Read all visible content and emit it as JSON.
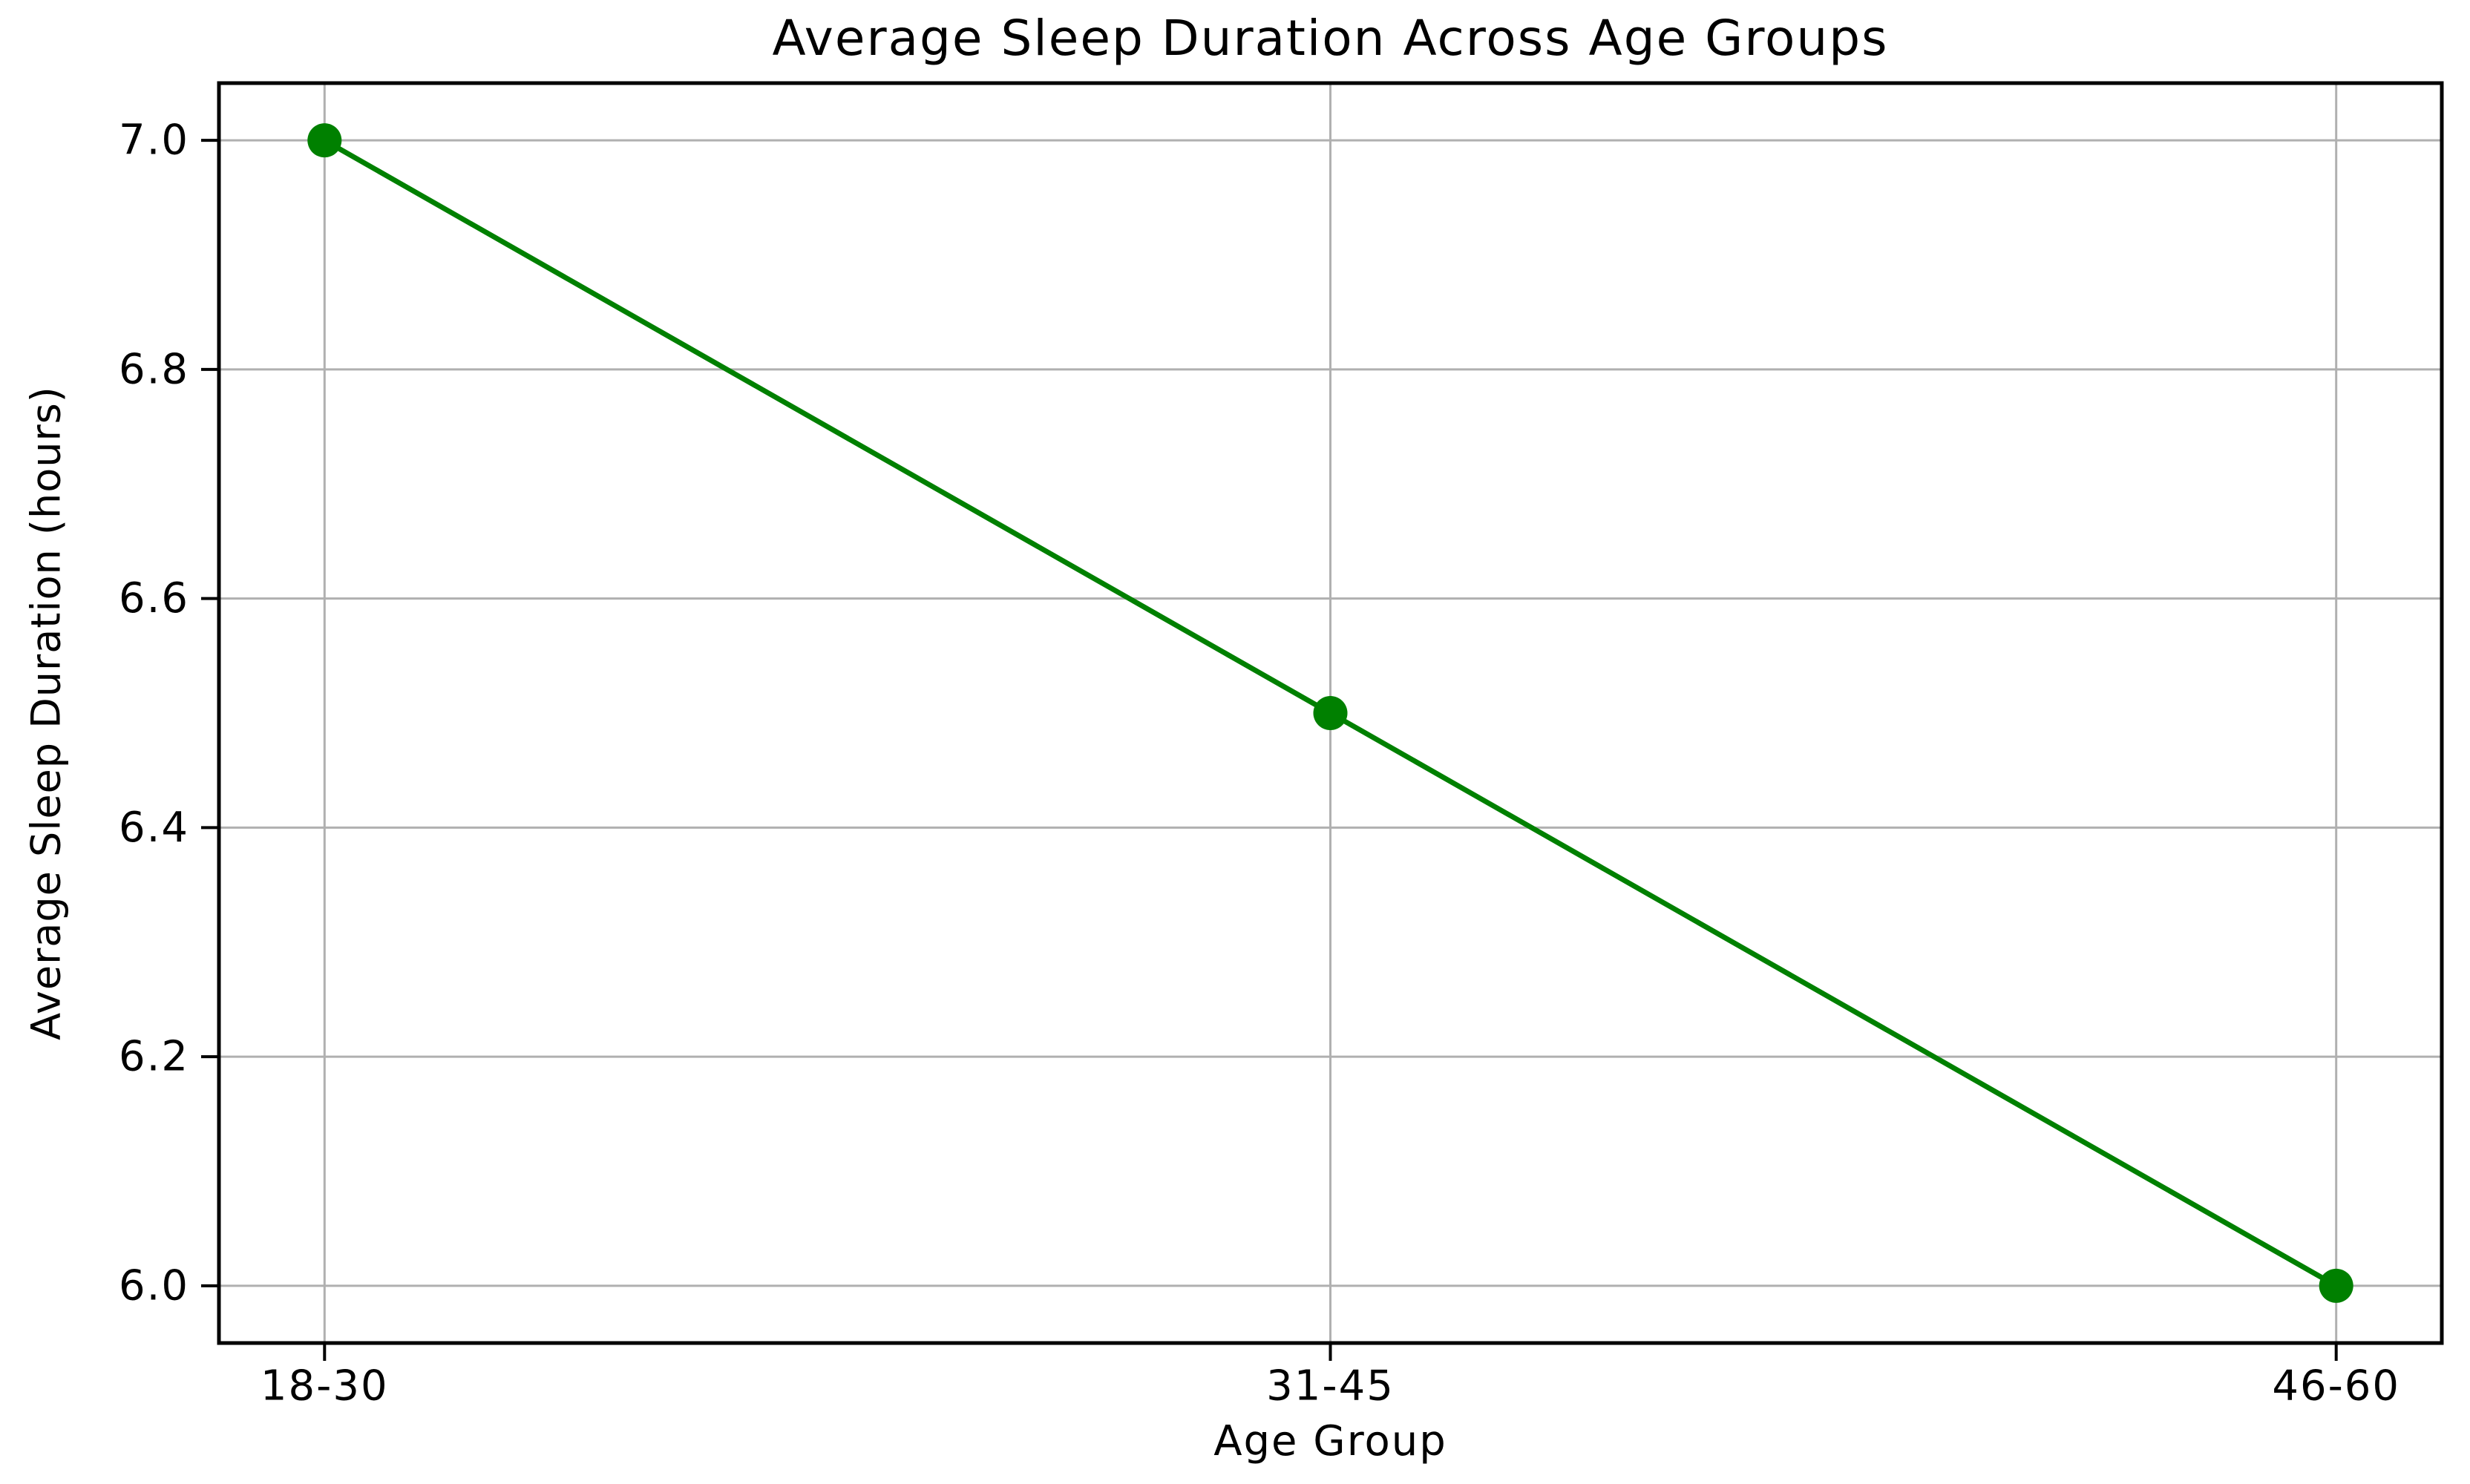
{
  "chart_data": {
    "type": "line",
    "title": "Average Sleep Duration Across Age Groups",
    "xlabel": "Age Group",
    "ylabel": "Average Sleep Duration (hours)",
    "categories": [
      "18-30",
      "31-45",
      "46-60"
    ],
    "series": [
      {
        "name": "Average Sleep Duration",
        "values": [
          7.0,
          6.5,
          6.0
        ]
      }
    ],
    "yticks": [
      6.0,
      6.2,
      6.4,
      6.6,
      6.8,
      7.0
    ],
    "ytick_labels": [
      "6.0",
      "6.2",
      "6.4",
      "6.6",
      "6.8",
      "7.0"
    ],
    "ylim": [
      5.95,
      7.05
    ],
    "xlim": [
      -0.105,
      2.105
    ],
    "grid": true,
    "legend": false,
    "marker": "circle",
    "colors": {
      "line": "#008000",
      "marker": "#008000",
      "grid": "#b0b0b0",
      "spine": "#000000",
      "text": "#000000",
      "background": "#ffffff"
    }
  }
}
